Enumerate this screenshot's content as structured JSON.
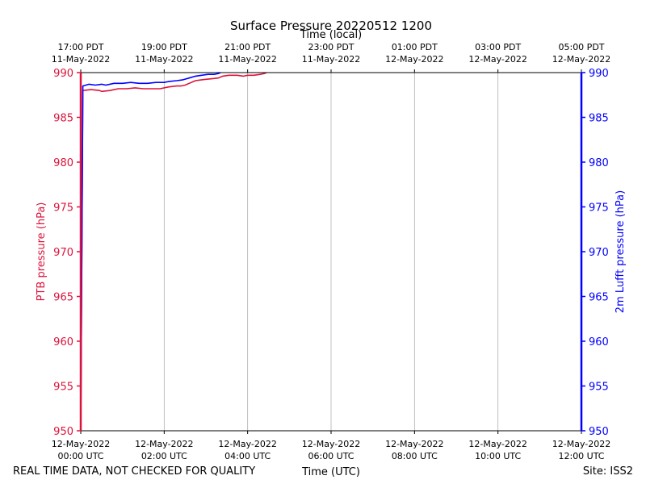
{
  "chart_data": {
    "type": "line",
    "title": "Surface Pressure 20220512 1200",
    "top_axis_label": "Time (local)",
    "xlabel": "Time (UTC)",
    "ylabel_left": "PTB pressure (hPa)",
    "ylabel_right": "2m Lufft pressure (hPa)",
    "footer_left": "REAL TIME DATA, NOT CHECKED FOR QUALITY",
    "footer_right": "Site: ISS2",
    "xlim_hours": [
      0,
      12
    ],
    "ylim": [
      950,
      990
    ],
    "y_ticks": [
      950,
      955,
      960,
      965,
      970,
      975,
      980,
      985,
      990
    ],
    "grid": "vertical",
    "bottom_ticks": [
      {
        "hour": 0,
        "line1": "12-May-2022",
        "line2": "00:00 UTC"
      },
      {
        "hour": 2,
        "line1": "12-May-2022",
        "line2": "02:00 UTC"
      },
      {
        "hour": 4,
        "line1": "12-May-2022",
        "line2": "04:00 UTC"
      },
      {
        "hour": 6,
        "line1": "12-May-2022",
        "line2": "06:00 UTC"
      },
      {
        "hour": 8,
        "line1": "12-May-2022",
        "line2": "08:00 UTC"
      },
      {
        "hour": 10,
        "line1": "12-May-2022",
        "line2": "10:00 UTC"
      },
      {
        "hour": 12,
        "line1": "12-May-2022",
        "line2": "12:00 UTC"
      }
    ],
    "top_ticks": [
      {
        "hour": 0,
        "line1": "17:00 PDT",
        "line2": "11-May-2022"
      },
      {
        "hour": 2,
        "line1": "19:00 PDT",
        "line2": "11-May-2022"
      },
      {
        "hour": 4,
        "line1": "21:00 PDT",
        "line2": "11-May-2022"
      },
      {
        "hour": 6,
        "line1": "23:00 PDT",
        "line2": "11-May-2022"
      },
      {
        "hour": 8,
        "line1": "01:00 PDT",
        "line2": "12-May-2022"
      },
      {
        "hour": 10,
        "line1": "03:00 PDT",
        "line2": "12-May-2022"
      },
      {
        "hour": 12,
        "line1": "05:00 PDT",
        "line2": "12-May-2022"
      }
    ],
    "series": [
      {
        "name": "PTB pressure",
        "axis": "left",
        "color": "#dc143c",
        "x": [
          0,
          0.05,
          0.25,
          0.45,
          0.5,
          0.7,
          0.9,
          1.1,
          1.3,
          1.5,
          1.7,
          1.9,
          2.1,
          2.3,
          2.4,
          2.5,
          2.6,
          2.75,
          2.9,
          3.1,
          3.3,
          3.4,
          3.55,
          3.75,
          3.9,
          4.0,
          4.15,
          4.3,
          4.4,
          4.45
        ],
        "values": [
          950,
          988.0,
          988.1,
          988.0,
          987.9,
          988.0,
          988.2,
          988.2,
          988.3,
          988.2,
          988.2,
          988.2,
          988.4,
          988.5,
          988.5,
          988.6,
          988.8,
          989.1,
          989.2,
          989.3,
          989.4,
          989.6,
          989.7,
          989.7,
          989.6,
          989.7,
          989.7,
          989.8,
          989.9,
          990.0
        ]
      },
      {
        "name": "2m Lufft pressure",
        "axis": "right",
        "color": "#0000ff",
        "x": [
          0,
          0.05,
          0.2,
          0.35,
          0.5,
          0.6,
          0.8,
          1.0,
          1.2,
          1.4,
          1.6,
          1.8,
          2.0,
          2.1,
          2.3,
          2.45,
          2.6,
          2.75,
          2.9,
          3.05,
          3.2,
          3.3,
          3.35
        ],
        "values": [
          950,
          988.5,
          988.7,
          988.6,
          988.7,
          988.6,
          988.8,
          988.8,
          988.9,
          988.8,
          988.8,
          988.9,
          988.9,
          989.0,
          989.1,
          989.2,
          989.4,
          989.6,
          989.7,
          989.8,
          989.8,
          989.9,
          990.0
        ]
      }
    ]
  }
}
